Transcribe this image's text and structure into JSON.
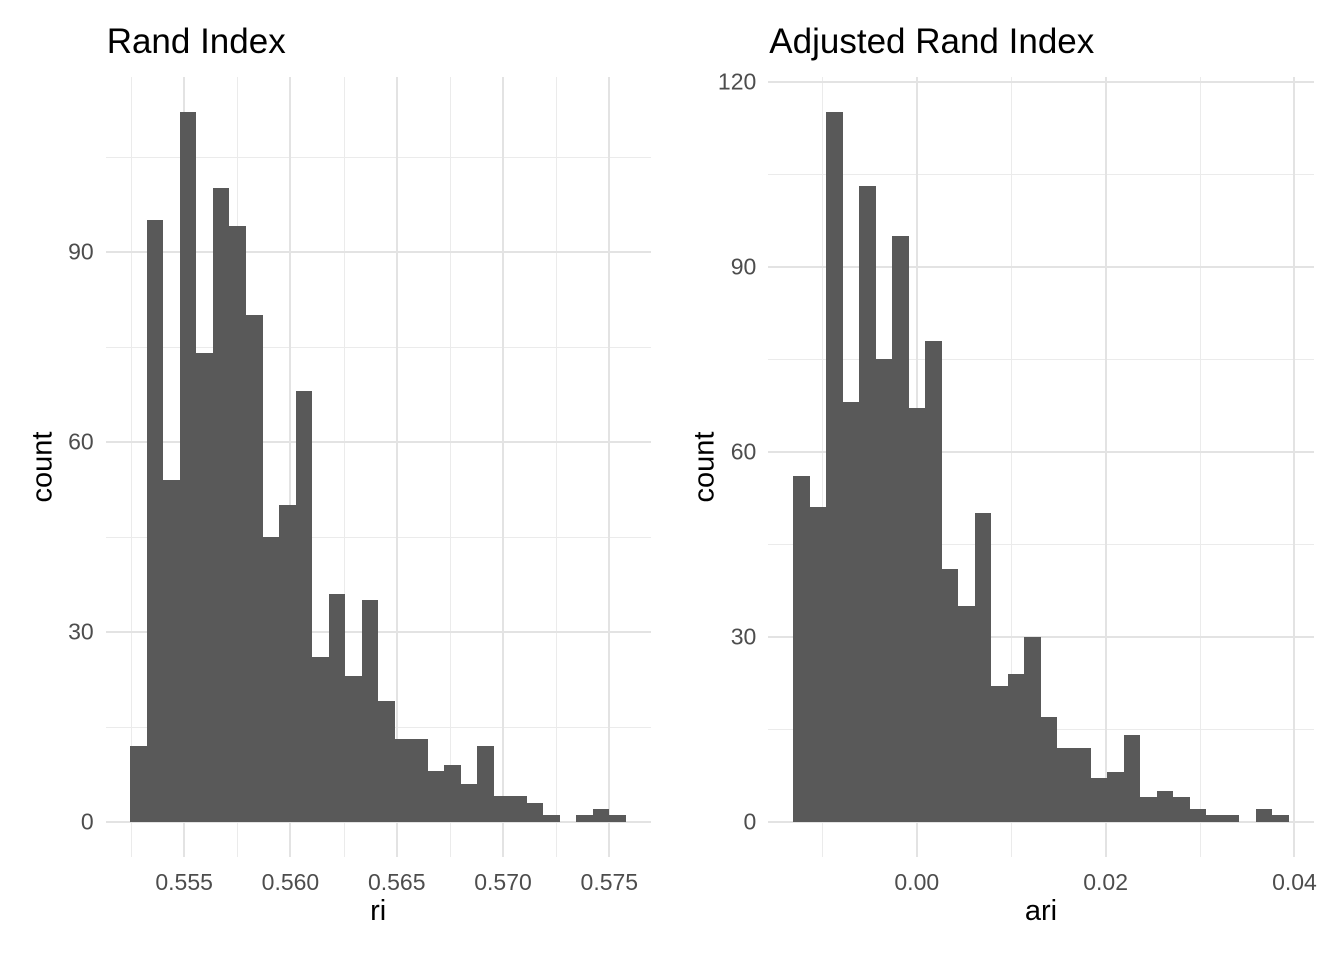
{
  "figure_background": "#ffffff",
  "colors": {
    "bar_fill": "#595959",
    "grid_major": "#e3e3e3",
    "grid_minor": "#ebebeb",
    "tick_label": "#4d4d4d",
    "title_text": "#000000"
  },
  "chart_data": [
    {
      "type": "histogram",
      "title": "Rand Index",
      "xlabel": "ri",
      "ylabel": "count",
      "bin_start": 0.55247,
      "bin_width": 0.000777,
      "counts": [
        12,
        95,
        54,
        112,
        74,
        100,
        94,
        80,
        45,
        50,
        68,
        26,
        36,
        23,
        35,
        19,
        13,
        13,
        8,
        9,
        6,
        12,
        4,
        4,
        3,
        1,
        0,
        1,
        2,
        1
      ],
      "total_n": 1000,
      "xlim": [
        0.551308,
        0.576946
      ],
      "ylim": [
        -5.6,
        117.6
      ],
      "grid": true,
      "legend": null,
      "x_ticks": [
        {
          "value": 0.555,
          "label": "0.555"
        },
        {
          "value": 0.56,
          "label": "0.560"
        },
        {
          "value": 0.565,
          "label": "0.565"
        },
        {
          "value": 0.57,
          "label": "0.570"
        },
        {
          "value": 0.575,
          "label": "0.575"
        }
      ],
      "x_minor": [
        0.5525,
        0.5575,
        0.5625,
        0.5675,
        0.5725
      ],
      "y_ticks": [
        {
          "value": 0,
          "label": "0"
        },
        {
          "value": 30,
          "label": "30"
        },
        {
          "value": 60,
          "label": "60"
        },
        {
          "value": 90,
          "label": "90"
        }
      ],
      "y_minor": [
        15,
        45,
        75,
        105
      ]
    },
    {
      "type": "histogram",
      "title": "Adjusted Rand Index",
      "xlabel": "ari",
      "ylabel": "count",
      "bin_start": -0.0131,
      "bin_width": 0.00175,
      "counts": [
        56,
        51,
        115,
        68,
        103,
        75,
        95,
        67,
        78,
        41,
        35,
        50,
        22,
        24,
        30,
        17,
        12,
        12,
        7,
        8,
        14,
        4,
        5,
        4,
        2,
        1,
        1,
        0,
        2,
        1
      ],
      "total_n": 1000,
      "xlim": [
        -0.015725,
        0.042025
      ],
      "ylim": [
        -5.75,
        120.75
      ],
      "grid": true,
      "legend": null,
      "x_ticks": [
        {
          "value": 0.0,
          "label": "0.00"
        },
        {
          "value": 0.02,
          "label": "0.02"
        },
        {
          "value": 0.04,
          "label": "0.04"
        }
      ],
      "x_minor": [
        -0.01,
        0.01,
        0.03
      ],
      "y_ticks": [
        {
          "value": 0,
          "label": "0"
        },
        {
          "value": 30,
          "label": "30"
        },
        {
          "value": 60,
          "label": "60"
        },
        {
          "value": 90,
          "label": "90"
        },
        {
          "value": 120,
          "label": "120"
        }
      ],
      "y_minor": [
        15,
        45,
        75,
        105
      ]
    }
  ]
}
